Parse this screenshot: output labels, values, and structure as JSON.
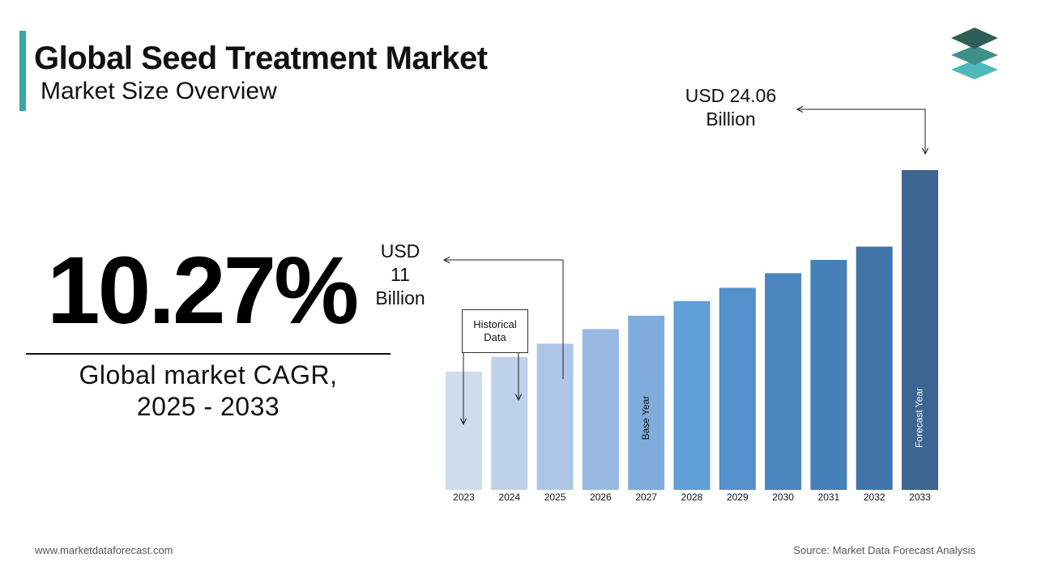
{
  "header": {
    "title": "Global Seed Treatment Market",
    "subtitle": "Market Size Overview"
  },
  "highlight": {
    "cagr_value": "10.27%",
    "cagr_label": "Global market  CAGR,",
    "cagr_period": "2025 - 2033"
  },
  "annotations": {
    "start_value_line1": "USD",
    "start_value_line2": "11",
    "start_value_line3": "Billion",
    "end_value_line1": "USD 24.06",
    "end_value_line2": "Billion",
    "historical_line1": "Historical",
    "historical_line2": "Data",
    "base_year": "Base Year",
    "forecast_year": "Forecast Year"
  },
  "footer": {
    "website": "www.marketdataforecast.com",
    "source": "Source:  Market  Data  Forecast  Analysis"
  },
  "colors": {
    "accent": "#3aa6a6",
    "bars": [
      "#cfdcec",
      "#bed1ea",
      "#aec6e6",
      "#97b8e0",
      "#80acdd",
      "#609fd8",
      "#5390cc",
      "#4b86bf",
      "#4680b8",
      "#4175aa",
      "#3c6592"
    ]
  },
  "chart_data": {
    "type": "bar",
    "categories": [
      "2023",
      "2024",
      "2025",
      "2026",
      "2027",
      "2028",
      "2029",
      "2030",
      "2031",
      "2032",
      "2033"
    ],
    "values": [
      8.9,
      10.0,
      11.0,
      12.1,
      13.1,
      14.2,
      15.2,
      16.3,
      17.3,
      18.3,
      24.06
    ],
    "ylabel": "",
    "xlabel": ""
  }
}
